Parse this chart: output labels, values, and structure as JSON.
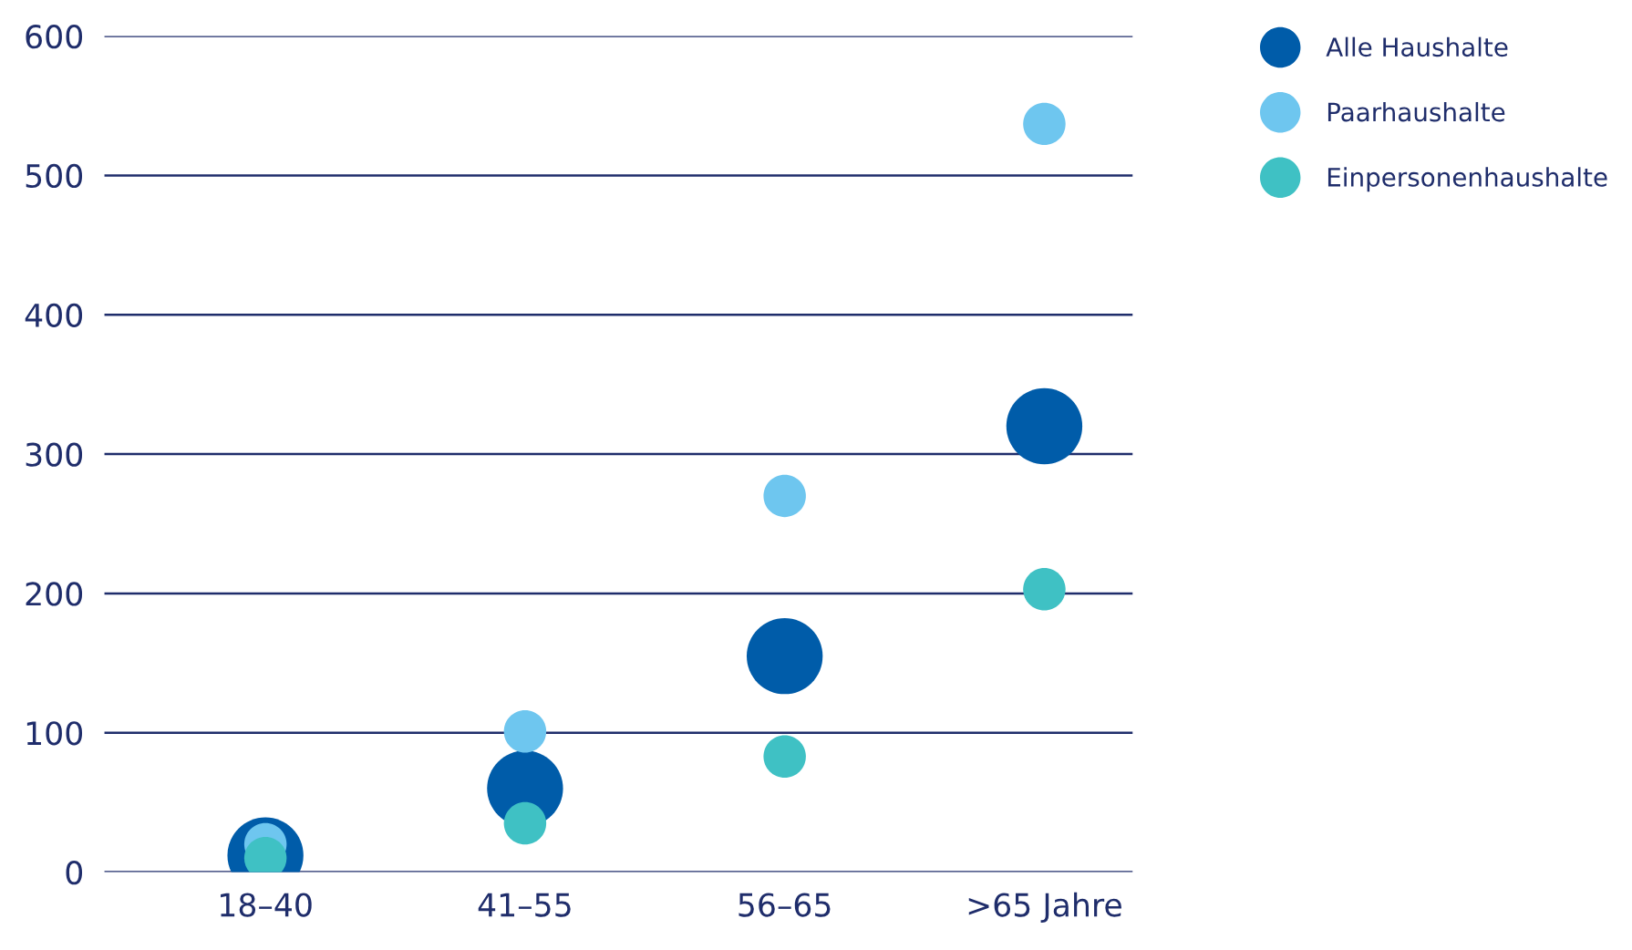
{
  "chart_data": {
    "type": "scatter",
    "categories": [
      "18–40",
      "41–55",
      "56–65",
      ">65 Jahre"
    ],
    "series": [
      {
        "name": "Alle Haushalte",
        "color": "#005ca9",
        "values": [
          12,
          60,
          155,
          320
        ]
      },
      {
        "name": "Paarhaushalte",
        "color": "#6ec6ef",
        "values": [
          20,
          101,
          270,
          537
        ]
      },
      {
        "name": "Einpersonenhaushalte",
        "color": "#3fc1c4",
        "values": [
          10,
          35,
          83,
          203
        ]
      }
    ],
    "ylim": [
      0,
      600
    ],
    "yticks": [
      0,
      100,
      200,
      300,
      400,
      500,
      600
    ],
    "grid": "y",
    "legend": "top right",
    "marker": "circle"
  }
}
